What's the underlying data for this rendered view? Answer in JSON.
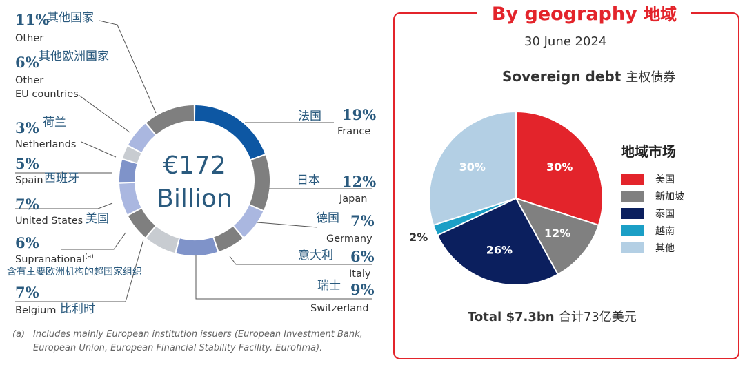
{
  "chart_data": [
    {
      "type": "donut",
      "center_text": [
        "€172",
        "Billion"
      ],
      "colors": {
        "blue": "#0d57a3",
        "gray": "#7f7f7f",
        "light_gray": "#c8ccd1",
        "periwinkle": "#aab7e0",
        "steel": "#7f93c9",
        "line": "#555555",
        "label": "#2a5a7e"
      },
      "segments": [
        {
          "pct": "19%",
          "value": 19,
          "cn": "法国",
          "en": "France",
          "color": "#0d57a3"
        },
        {
          "pct": "12%",
          "value": 12,
          "cn": "日本",
          "en": "Japan",
          "color": "#7f7f7f"
        },
        {
          "pct": "7%",
          "value": 7,
          "cn": "德国",
          "en": "Germany",
          "color": "#aab7e0"
        },
        {
          "pct": "6%",
          "value": 6,
          "cn": "意大利",
          "en": "Italy",
          "color": "#7f7f7f"
        },
        {
          "pct": "9%",
          "value": 9,
          "cn": "瑞士",
          "en": "Switzerland",
          "color": "#7f93c9"
        },
        {
          "pct": "7%",
          "value": 7,
          "cn": "比利时",
          "en": "Belgium",
          "color": "#c8ccd1"
        },
        {
          "pct": "6%",
          "value": 6,
          "cn": "含有主要欧洲机构的超国家组织",
          "en": "Supranational",
          "sup": "(a)",
          "color": "#7f7f7f"
        },
        {
          "pct": "7%",
          "value": 7,
          "cn": "美国",
          "en": "United States",
          "color": "#aab7e0"
        },
        {
          "pct": "5%",
          "value": 5,
          "cn": "西班牙",
          "en": "Spain",
          "color": "#7f93c9"
        },
        {
          "pct": "3%",
          "value": 3,
          "cn": "荷兰",
          "en": "Netherlands",
          "color": "#c8ccd1"
        },
        {
          "pct": "6%",
          "value": 6,
          "cn": "其他欧洲国家",
          "en": "Other EU countries",
          "en_lines": [
            "Other",
            "EU countries"
          ],
          "color": "#aab7e0"
        },
        {
          "pct": "11%",
          "value": 11,
          "cn": "其他国家",
          "en": "Other",
          "color": "#7f7f7f"
        }
      ],
      "footnote": {
        "mark": "(a)",
        "lines": [
          "Includes mainly European institution issuers (European Investment Bank,",
          "European Union, European Financial Stability Facility, Eurofima)."
        ]
      }
    },
    {
      "type": "pie",
      "box_title": "By geography",
      "box_title_cn": "地域",
      "date": "30 June 2024",
      "title": "Sovereign debt",
      "title_cn": "主权债券",
      "legend_title": "地域市场",
      "legend_placement": "right",
      "slices": [
        {
          "name": "美国",
          "value": 30,
          "label": "30%",
          "color": "#e3242b"
        },
        {
          "name": "新加坡",
          "value": 12,
          "label": "12%",
          "color": "#808080"
        },
        {
          "name": "泰国",
          "value": 26,
          "label": "26%",
          "color": "#0b1f5e"
        },
        {
          "name": "越南",
          "value": 2,
          "label": "2%",
          "color": "#1b9fc6"
        },
        {
          "name": "其他",
          "value": 30,
          "label": "30%",
          "color": "#b3cfe4"
        }
      ],
      "total": "Total $7.3bn",
      "total_cn": "合计73亿美元"
    }
  ]
}
